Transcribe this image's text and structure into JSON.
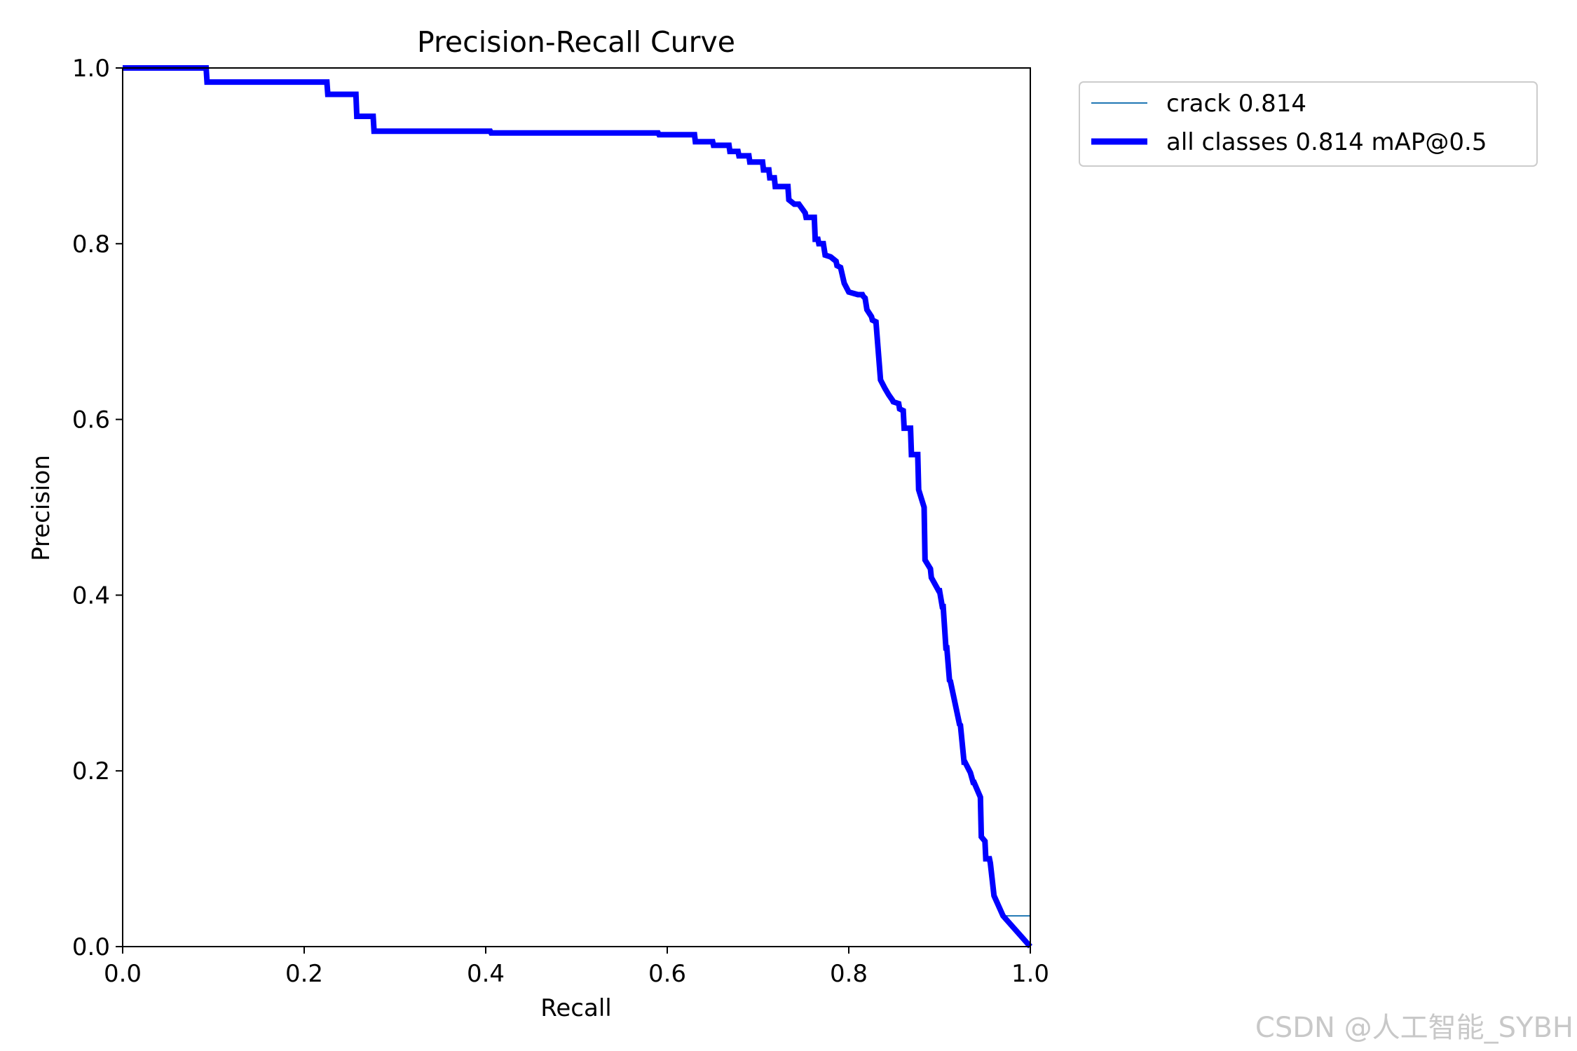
{
  "chart_data": {
    "type": "line",
    "title": "Precision-Recall Curve",
    "xlabel": "Recall",
    "ylabel": "Precision",
    "xlim": [
      0.0,
      1.0
    ],
    "ylim": [
      0.0,
      1.0
    ],
    "xticks": [
      "0.0",
      "0.2",
      "0.4",
      "0.6",
      "0.8",
      "1.0"
    ],
    "yticks": [
      "0.0",
      "0.2",
      "0.4",
      "0.6",
      "0.8",
      "1.0"
    ],
    "grid": false,
    "legend_position": "outside-upper-right",
    "series": [
      {
        "name": "crack 0.814",
        "color": "#1f77b4",
        "style": "thin",
        "x": [
          0.0,
          0.092,
          0.093,
          0.225,
          0.226,
          0.257,
          0.258,
          0.276,
          0.277,
          0.405,
          0.406,
          0.59,
          0.591,
          0.63,
          0.631,
          0.65,
          0.651,
          0.668,
          0.669,
          0.678,
          0.679,
          0.69,
          0.691,
          0.705,
          0.706,
          0.712,
          0.713,
          0.718,
          0.719,
          0.733,
          0.734,
          0.74,
          0.745,
          0.752,
          0.753,
          0.762,
          0.763,
          0.766,
          0.767,
          0.772,
          0.774,
          0.78,
          0.786,
          0.787,
          0.791,
          0.795,
          0.8,
          0.81,
          0.815,
          0.816,
          0.818,
          0.82,
          0.825,
          0.826,
          0.83,
          0.835,
          0.84,
          0.844,
          0.848,
          0.849,
          0.855,
          0.856,
          0.86,
          0.861,
          0.868,
          0.869,
          0.876,
          0.877,
          0.88,
          0.883,
          0.884,
          0.89,
          0.891,
          0.899,
          0.9,
          0.903,
          0.904,
          0.907,
          0.908,
          0.911,
          0.912,
          0.922,
          0.923,
          0.927,
          0.928,
          0.933,
          0.934,
          0.937,
          0.938,
          0.945,
          0.946,
          0.95,
          0.951,
          0.955,
          0.956,
          0.96,
          0.97,
          1.0
        ],
        "y": [
          1.0,
          1.0,
          0.984,
          0.984,
          0.97,
          0.97,
          0.945,
          0.945,
          0.928,
          0.928,
          0.926,
          0.926,
          0.924,
          0.924,
          0.916,
          0.916,
          0.912,
          0.912,
          0.905,
          0.905,
          0.9,
          0.9,
          0.893,
          0.893,
          0.884,
          0.884,
          0.875,
          0.875,
          0.865,
          0.865,
          0.85,
          0.845,
          0.845,
          0.835,
          0.83,
          0.83,
          0.805,
          0.805,
          0.8,
          0.8,
          0.787,
          0.785,
          0.78,
          0.775,
          0.773,
          0.755,
          0.745,
          0.742,
          0.742,
          0.74,
          0.738,
          0.725,
          0.717,
          0.713,
          0.711,
          0.645,
          0.635,
          0.628,
          0.622,
          0.62,
          0.618,
          0.612,
          0.61,
          0.59,
          0.59,
          0.56,
          0.56,
          0.52,
          0.51,
          0.5,
          0.44,
          0.43,
          0.42,
          0.405,
          0.405,
          0.387,
          0.387,
          0.34,
          0.34,
          0.303,
          0.302,
          0.253,
          0.252,
          0.21,
          0.21,
          0.2,
          0.198,
          0.187,
          0.187,
          0.17,
          0.125,
          0.12,
          0.1,
          0.1,
          0.095,
          0.058,
          0.035,
          0.035
        ]
      },
      {
        "name": "all classes 0.814 mAP@0.5",
        "color": "#0000ff",
        "style": "thick",
        "x": [
          0.0,
          0.092,
          0.093,
          0.225,
          0.226,
          0.257,
          0.258,
          0.276,
          0.277,
          0.405,
          0.406,
          0.59,
          0.591,
          0.63,
          0.631,
          0.65,
          0.651,
          0.668,
          0.669,
          0.678,
          0.679,
          0.69,
          0.691,
          0.705,
          0.706,
          0.712,
          0.713,
          0.718,
          0.719,
          0.733,
          0.734,
          0.74,
          0.745,
          0.752,
          0.753,
          0.762,
          0.763,
          0.766,
          0.767,
          0.772,
          0.774,
          0.78,
          0.786,
          0.787,
          0.791,
          0.795,
          0.8,
          0.81,
          0.815,
          0.816,
          0.818,
          0.82,
          0.825,
          0.826,
          0.83,
          0.835,
          0.84,
          0.844,
          0.848,
          0.849,
          0.855,
          0.856,
          0.86,
          0.861,
          0.868,
          0.869,
          0.876,
          0.877,
          0.88,
          0.883,
          0.884,
          0.89,
          0.891,
          0.899,
          0.9,
          0.903,
          0.904,
          0.907,
          0.908,
          0.911,
          0.912,
          0.922,
          0.923,
          0.927,
          0.928,
          0.933,
          0.934,
          0.937,
          0.938,
          0.945,
          0.946,
          0.95,
          0.951,
          0.955,
          0.956,
          0.96,
          0.97,
          1.0
        ],
        "y": [
          1.0,
          1.0,
          0.984,
          0.984,
          0.97,
          0.97,
          0.945,
          0.945,
          0.928,
          0.928,
          0.926,
          0.926,
          0.924,
          0.924,
          0.916,
          0.916,
          0.912,
          0.912,
          0.905,
          0.905,
          0.9,
          0.9,
          0.893,
          0.893,
          0.884,
          0.884,
          0.875,
          0.875,
          0.865,
          0.865,
          0.85,
          0.845,
          0.845,
          0.835,
          0.83,
          0.83,
          0.805,
          0.805,
          0.8,
          0.8,
          0.787,
          0.785,
          0.78,
          0.775,
          0.773,
          0.755,
          0.745,
          0.742,
          0.742,
          0.74,
          0.738,
          0.725,
          0.717,
          0.713,
          0.711,
          0.645,
          0.635,
          0.628,
          0.622,
          0.62,
          0.618,
          0.612,
          0.61,
          0.59,
          0.59,
          0.56,
          0.56,
          0.52,
          0.51,
          0.5,
          0.44,
          0.43,
          0.42,
          0.405,
          0.405,
          0.387,
          0.387,
          0.34,
          0.34,
          0.303,
          0.302,
          0.253,
          0.252,
          0.21,
          0.21,
          0.2,
          0.198,
          0.187,
          0.187,
          0.17,
          0.125,
          0.12,
          0.1,
          0.1,
          0.095,
          0.058,
          0.035,
          0.0
        ]
      }
    ]
  },
  "watermark": "CSDN @人工智能_SYBH"
}
